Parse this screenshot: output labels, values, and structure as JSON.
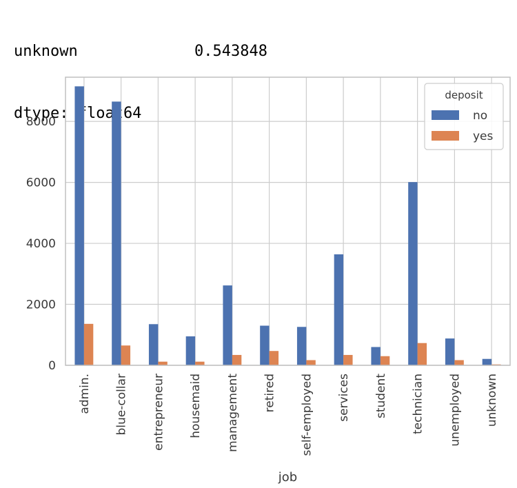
{
  "console": {
    "row_label": "unknown",
    "row_value": "0.543848",
    "dtype": "dtype: float64"
  },
  "colors": {
    "no": "#4c72b0",
    "yes": "#dd8452",
    "grid": "#cccccc",
    "spine": "#c0c0c0",
    "tick_text": "#3a3a3a"
  },
  "chart_data": {
    "type": "bar",
    "xlabel": "job",
    "ylabel": "",
    "ylim": [
      0,
      9450
    ],
    "yticks": [
      0,
      2000,
      4000,
      6000,
      8000
    ],
    "grid": true,
    "categories": [
      "admin.",
      "blue-collar",
      "entrepreneur",
      "housemaid",
      "management",
      "retired",
      "self-employed",
      "services",
      "student",
      "technician",
      "unemployed",
      "unknown"
    ],
    "series": [
      {
        "name": "no",
        "values": [
          9150,
          8650,
          1350,
          950,
          2620,
          1300,
          1260,
          3640,
          600,
          6010,
          880,
          210
        ]
      },
      {
        "name": "yes",
        "values": [
          1360,
          650,
          120,
          120,
          340,
          470,
          170,
          340,
          300,
          730,
          170,
          30
        ]
      }
    ],
    "legend": {
      "title": "deposit",
      "placement": "top-right"
    }
  }
}
